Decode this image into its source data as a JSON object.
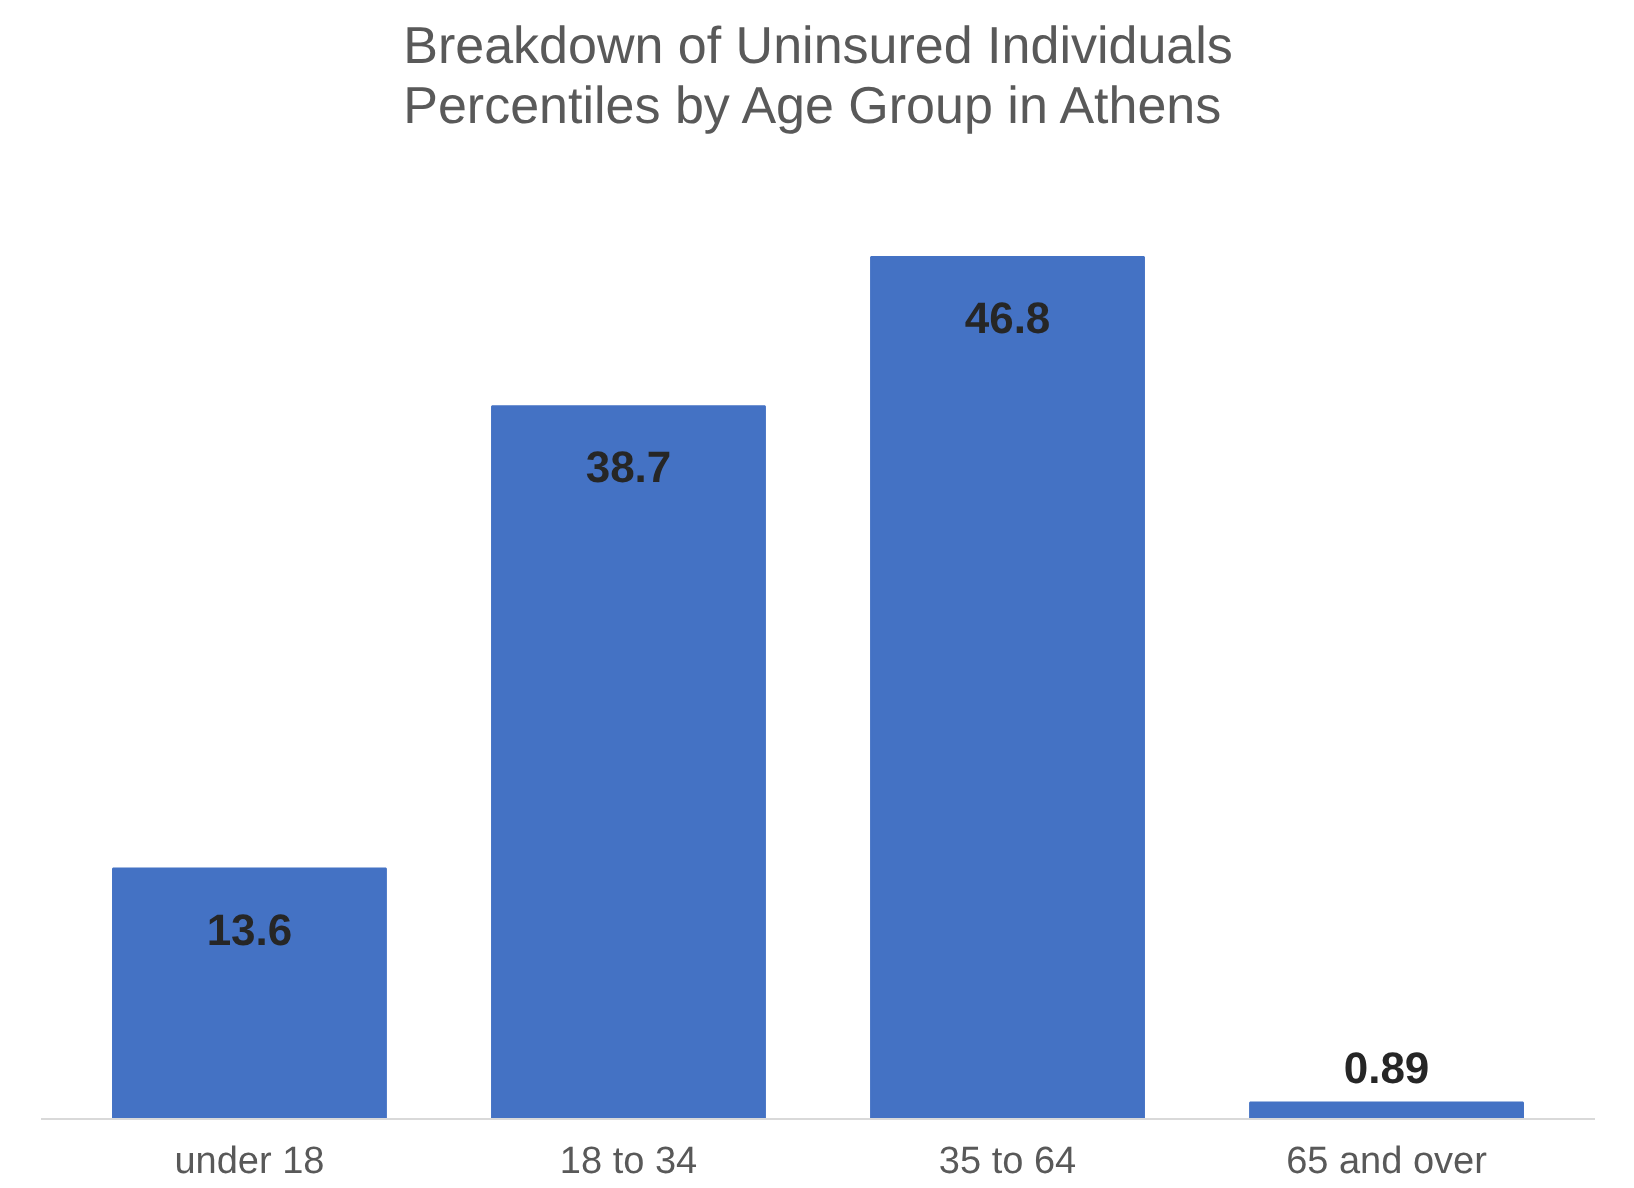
{
  "chart_data": {
    "type": "bar",
    "title": "Breakdown of Uninsured Individuals\nPercentiles by Age Group in Athens",
    "categories": [
      "under 18",
      "18 to 34",
      "35 to 64",
      "65 and over"
    ],
    "values": [
      13.6,
      38.7,
      46.8,
      0.89
    ],
    "color": "#4472c4",
    "data_labels": true,
    "grid": false
  }
}
